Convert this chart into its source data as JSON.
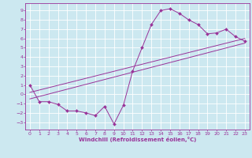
{
  "xlabel": "Windchill (Refroidissement éolien,°C)",
  "xlim": [
    -0.5,
    23.5
  ],
  "ylim": [
    -3.8,
    9.8
  ],
  "xticks": [
    0,
    1,
    2,
    3,
    4,
    5,
    6,
    7,
    8,
    9,
    10,
    11,
    12,
    13,
    14,
    15,
    16,
    17,
    18,
    19,
    20,
    21,
    22,
    23
  ],
  "yticks": [
    -3,
    -2,
    -1,
    0,
    1,
    2,
    3,
    4,
    5,
    6,
    7,
    8,
    9
  ],
  "line_color": "#993399",
  "bg_color": "#cce8f0",
  "grid_color": "#ffffff",
  "zigzag_x": [
    0,
    1,
    2,
    3,
    4,
    5,
    6,
    7,
    8,
    9,
    10,
    11,
    12,
    13,
    14,
    15,
    16,
    17,
    18,
    19,
    20,
    21,
    22,
    23
  ],
  "zigzag_y": [
    1.0,
    -0.8,
    -0.8,
    -1.1,
    -1.8,
    -1.8,
    -2.0,
    -2.3,
    -1.3,
    -3.2,
    -1.2,
    2.5,
    5.0,
    7.5,
    9.0,
    9.2,
    8.7,
    8.0,
    7.5,
    6.5,
    6.6,
    7.0,
    6.2,
    5.7
  ],
  "line1_x": [
    0,
    23
  ],
  "line1_y": [
    -0.5,
    5.5
  ],
  "line2_x": [
    0,
    23
  ],
  "line2_y": [
    0.2,
    6.0
  ],
  "marker": "D",
  "markersize": 2.0,
  "linewidth": 0.7,
  "tick_fontsize": 4.5,
  "xlabel_fontsize": 5.0
}
